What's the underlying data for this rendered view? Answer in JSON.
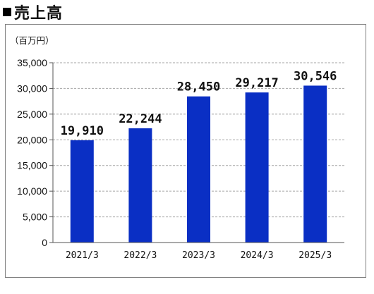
{
  "heading": {
    "title": "売上高",
    "marker_icon": "black-square-icon"
  },
  "chart_data": {
    "type": "bar",
    "title": "売上高",
    "unit_label": "（百万円）",
    "categories": [
      "2021/3",
      "2022/3",
      "2023/3",
      "2024/3",
      "2025/3"
    ],
    "values": [
      19910,
      22244,
      28450,
      29217,
      30546
    ],
    "data_labels": [
      "19,910",
      "22,244",
      "28,450",
      "29,217",
      "30,546"
    ],
    "ylim": [
      0,
      35000
    ],
    "yticks": [
      0,
      5000,
      10000,
      15000,
      20000,
      25000,
      30000,
      35000
    ],
    "ytick_labels": [
      "0",
      "5,000",
      "10,000",
      "15,000",
      "20,000",
      "25,000",
      "30,000",
      "35,000"
    ],
    "grid": true,
    "legend": "none",
    "bar_color": "#0a2fc4",
    "grid_color": "#a6a6a6"
  }
}
